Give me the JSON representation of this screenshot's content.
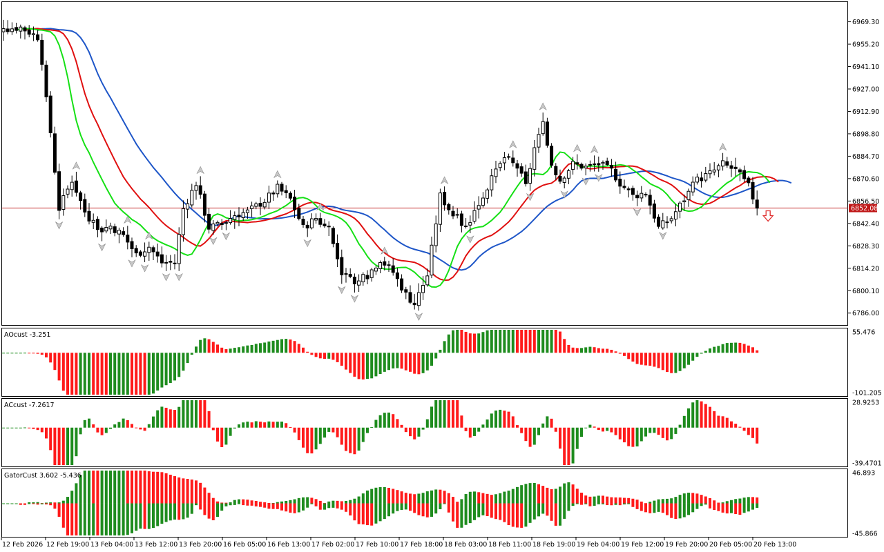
{
  "chart_data": [
    {
      "type": "candlestick",
      "panel": "main",
      "yticks": [
        "6969.30",
        "6955.20",
        "6941.10",
        "6927.00",
        "6912.90",
        "6898.80",
        "6884.70",
        "6870.60",
        "6856.50",
        "6842.40",
        "6828.30",
        "6814.20",
        "6800.10",
        "6786.00"
      ],
      "ylim": [
        6778.5,
        6981.7
      ],
      "current_price": "6852.08",
      "current_price_value": 6852.08,
      "xticks": [
        "12 Feb 2026",
        "12 Feb 19:00",
        "13 Feb 04:00",
        "13 Feb 12:00",
        "13 Feb 20:00",
        "16 Feb 05:00",
        "16 Feb 13:00",
        "17 Feb 02:00",
        "17 Feb 10:00",
        "17 Feb 18:00",
        "18 Feb 03:00",
        "18 Feb 11:00",
        "18 Feb 19:00",
        "19 Feb 04:00",
        "19 Feb 12:00",
        "19 Feb 20:00",
        "20 Feb 05:00",
        "20 Feb 13:00"
      ],
      "close_anchors": [
        [
          0,
          6965
        ],
        [
          4,
          6966
        ],
        [
          8,
          6960
        ],
        [
          11,
          6900
        ],
        [
          13,
          6852
        ],
        [
          16,
          6870
        ],
        [
          19,
          6850
        ],
        [
          22,
          6838
        ],
        [
          25,
          6841
        ],
        [
          28,
          6835
        ],
        [
          31,
          6823
        ],
        [
          34,
          6828
        ],
        [
          37,
          6818
        ],
        [
          40,
          6818
        ],
        [
          42,
          6852
        ],
        [
          45,
          6868
        ],
        [
          48,
          6840
        ],
        [
          51,
          6842
        ],
        [
          54,
          6848
        ],
        [
          57,
          6850
        ],
        [
          61,
          6857
        ],
        [
          64,
          6865
        ],
        [
          67,
          6858
        ],
        [
          70,
          6840
        ],
        [
          73,
          6846
        ],
        [
          76,
          6838
        ],
        [
          79,
          6812
        ],
        [
          82,
          6804
        ],
        [
          85,
          6810
        ],
        [
          88,
          6820
        ],
        [
          91,
          6812
        ],
        [
          94,
          6798
        ],
        [
          96,
          6792
        ],
        [
          99,
          6810
        ],
        [
          102,
          6860
        ],
        [
          105,
          6848
        ],
        [
          108,
          6840
        ],
        [
          111,
          6855
        ],
        [
          114,
          6870
        ],
        [
          117,
          6884
        ],
        [
          120,
          6878
        ],
        [
          122,
          6866
        ],
        [
          124,
          6890
        ],
        [
          126,
          6904
        ],
        [
          128,
          6880
        ],
        [
          130,
          6870
        ],
        [
          133,
          6880
        ],
        [
          136,
          6878
        ],
        [
          139,
          6880
        ],
        [
          142,
          6876
        ],
        [
          144,
          6868
        ],
        [
          147,
          6860
        ],
        [
          150,
          6862
        ],
        [
          153,
          6840
        ],
        [
          156,
          6846
        ],
        [
          159,
          6858
        ],
        [
          162,
          6870
        ],
        [
          165,
          6874
        ],
        [
          168,
          6880
        ],
        [
          171,
          6876
        ],
        [
          174,
          6866
        ],
        [
          176,
          6852
        ]
      ],
      "series": [
        {
          "name": "ma-blue",
          "color": "#1e56c8",
          "period": 13,
          "shift": 8
        },
        {
          "name": "ma-red",
          "color": "#e01010",
          "period": 8,
          "shift": 5
        },
        {
          "name": "ma-green",
          "color": "#16e016",
          "period": 5,
          "shift": 3
        }
      ],
      "arrow_color": "#e03030"
    },
    {
      "type": "histogram",
      "panel": "ao",
      "label": "AOcust -3.251",
      "yticks": [
        "55.476",
        "-101.205"
      ],
      "ylim": [
        -101.205,
        55.476
      ],
      "colors": {
        "up": "#1e8c1e",
        "down": "#ff1a1a"
      }
    },
    {
      "type": "histogram",
      "panel": "ac",
      "label": "ACcust -7.2617",
      "yticks": [
        "28.9253",
        "-39.4701"
      ],
      "ylim": [
        -39.4701,
        28.9253
      ],
      "colors": {
        "up": "#1e8c1e",
        "down": "#ff1a1a"
      }
    },
    {
      "type": "histogram",
      "panel": "gator",
      "label": "GatorCust 3.602 -5.436",
      "yticks": [
        "46.893",
        "-45.866"
      ],
      "ylim": [
        -45.866,
        46.893
      ],
      "colors": {
        "up": "#1e8c1e",
        "down": "#ff1a1a"
      }
    }
  ]
}
